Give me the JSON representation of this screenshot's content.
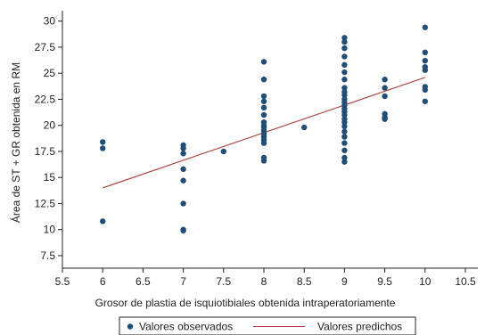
{
  "chart_data": {
    "type": "scatter",
    "xlabel": "Grosor de plastia de isquiotibiales obtenida intraperatoriamente",
    "ylabel": "Área de ST + GR obtenida en RM",
    "xlim": [
      5.5,
      10.5
    ],
    "ylim": [
      7.5,
      30
    ],
    "x_ticks": [
      "5.5",
      "6",
      "6.5",
      "7",
      "7.5",
      "8",
      "8.5",
      "9",
      "9.5",
      "10",
      "10.5"
    ],
    "y_ticks": [
      "7.5",
      "10",
      "12.5",
      "15",
      "17.5",
      "20",
      "22.5",
      "25",
      "27.5",
      "30"
    ],
    "grid": false,
    "legend_position": "bottom",
    "colors": {
      "observed": "#1f4e79",
      "predicted": "#b03a3a"
    },
    "series": [
      {
        "name": "Valores observados",
        "type": "scatter",
        "points": [
          [
            6,
            18.4
          ],
          [
            6,
            17.8
          ],
          [
            6,
            10.8
          ],
          [
            7,
            18.1
          ],
          [
            7,
            17.8
          ],
          [
            7,
            17.3
          ],
          [
            7,
            15.8
          ],
          [
            7,
            14.7
          ],
          [
            7,
            12.5
          ],
          [
            7,
            10.0
          ],
          [
            7,
            9.9
          ],
          [
            7.5,
            17.5
          ],
          [
            8,
            26.1
          ],
          [
            8,
            24.4
          ],
          [
            8,
            22.8
          ],
          [
            8,
            22.3
          ],
          [
            8,
            21.7
          ],
          [
            8,
            21.0
          ],
          [
            8,
            20.3
          ],
          [
            8,
            20.0
          ],
          [
            8,
            19.8
          ],
          [
            8,
            19.5
          ],
          [
            8,
            19.2
          ],
          [
            8,
            18.9
          ],
          [
            8,
            18.6
          ],
          [
            8,
            18.3
          ],
          [
            8,
            16.9
          ],
          [
            8,
            16.6
          ],
          [
            8.5,
            19.8
          ],
          [
            9,
            28.4
          ],
          [
            9,
            28.0
          ],
          [
            9,
            27.4
          ],
          [
            9,
            26.6
          ],
          [
            9,
            25.8
          ],
          [
            9,
            25.1
          ],
          [
            9,
            24.4
          ],
          [
            9,
            23.6
          ],
          [
            9,
            23.2
          ],
          [
            9,
            22.9
          ],
          [
            9,
            22.5
          ],
          [
            9,
            22.2
          ],
          [
            9,
            21.9
          ],
          [
            9,
            21.6
          ],
          [
            9,
            21.3
          ],
          [
            9,
            21.0
          ],
          [
            9,
            20.6
          ],
          [
            9,
            20.3
          ],
          [
            9,
            19.9
          ],
          [
            9,
            19.4
          ],
          [
            9,
            18.9
          ],
          [
            9,
            18.3
          ],
          [
            9,
            17.6
          ],
          [
            9,
            16.9
          ],
          [
            9,
            16.5
          ],
          [
            9.5,
            24.4
          ],
          [
            9.5,
            23.6
          ],
          [
            9.5,
            22.8
          ],
          [
            9.5,
            21.1
          ],
          [
            9.5,
            20.8
          ],
          [
            9.5,
            20.6
          ],
          [
            10,
            29.4
          ],
          [
            10,
            27.0
          ],
          [
            10,
            26.2
          ],
          [
            10,
            25.6
          ],
          [
            10,
            25.3
          ],
          [
            10,
            23.7
          ],
          [
            10,
            23.4
          ],
          [
            10,
            22.3
          ]
        ]
      },
      {
        "name": "Valores predichos",
        "type": "line",
        "points": [
          [
            6,
            14.0
          ],
          [
            10,
            24.6
          ]
        ]
      }
    ]
  }
}
